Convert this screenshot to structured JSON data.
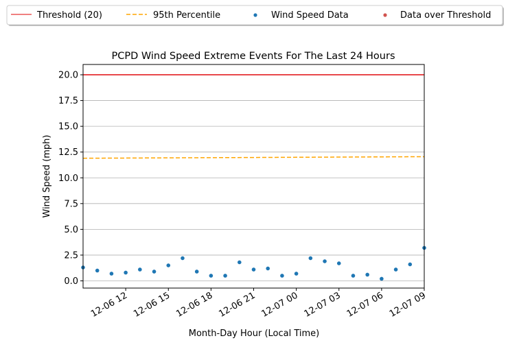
{
  "chart_data": {
    "type": "scatter",
    "title": "PCPD Wind Speed Extreme Events For The Last 24 Hours",
    "xlabel": "Month-Day Hour (Local Time)",
    "ylabel": "Wind Speed (mph)",
    "x_unit": "hour",
    "x_ticks": [
      "12-06 12",
      "12-06 15",
      "12-06 18",
      "12-06 21",
      "12-07 00",
      "12-07 03",
      "12-07 06",
      "12-07 09"
    ],
    "x_tick_hours": [
      12,
      15,
      18,
      21,
      24,
      27,
      30,
      33
    ],
    "xlim_hours": [
      9,
      33
    ],
    "ylim": [
      -0.7,
      21
    ],
    "y_ticks": [
      "0.0",
      "2.5",
      "5.0",
      "7.5",
      "10.0",
      "12.5",
      "15.0",
      "17.5",
      "20.0"
    ],
    "y_tick_values": [
      0,
      2.5,
      5,
      7.5,
      10,
      12.5,
      15,
      17.5,
      20
    ],
    "grid": "horizontal",
    "legend": {
      "placement": "top, above plot",
      "entries": [
        "Threshold (20)",
        "95th Percentile",
        "Wind Speed Data",
        "Data over Threshold"
      ]
    },
    "series": [
      {
        "name": "Threshold (20)",
        "kind": "line",
        "color": "#e8474a",
        "x": [
          9,
          33
        ],
        "y": [
          20,
          20
        ]
      },
      {
        "name": "95th Percentile",
        "kind": "dashed-line",
        "color": "#ffa500",
        "x": [
          9,
          33
        ],
        "y": [
          11.9,
          12.05
        ]
      },
      {
        "name": "Wind Speed Data",
        "kind": "scatter",
        "color": "#1f77b4",
        "x": [
          9,
          10,
          11,
          12,
          13,
          14,
          15,
          16,
          17,
          18,
          19,
          20,
          21,
          22,
          23,
          24,
          25,
          26,
          27,
          28,
          29,
          30,
          31,
          32,
          33
        ],
        "y": [
          1.3,
          1.0,
          0.7,
          0.8,
          1.1,
          0.9,
          1.5,
          2.2,
          0.9,
          0.5,
          0.5,
          1.8,
          1.1,
          1.2,
          0.5,
          0.7,
          2.2,
          1.9,
          1.7,
          0.5,
          0.6,
          0.2,
          1.1,
          1.6,
          3.2
        ]
      },
      {
        "name": "Data over Threshold",
        "kind": "scatter",
        "color": "#d1534f",
        "x": [],
        "y": []
      }
    ]
  }
}
